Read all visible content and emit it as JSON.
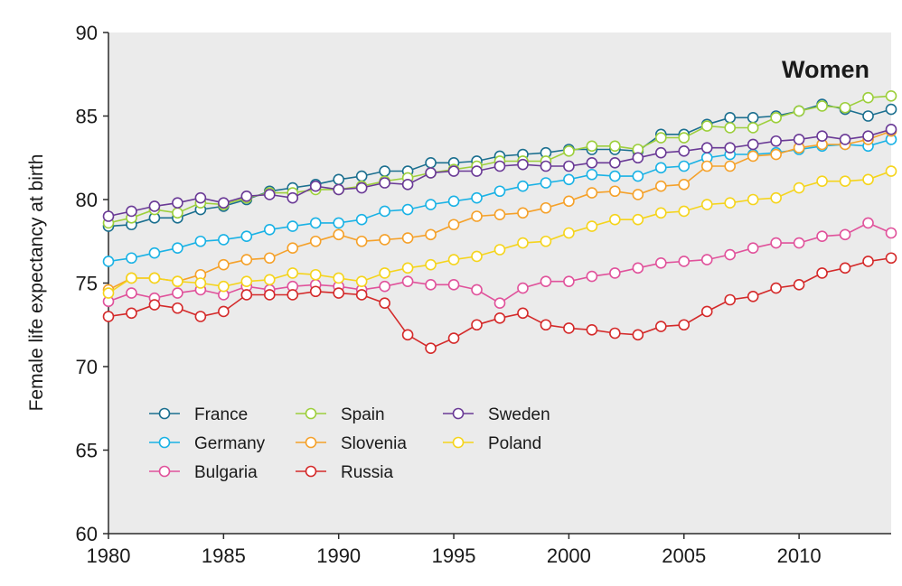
{
  "chart_data": {
    "type": "line",
    "title": "Women",
    "xlabel": "",
    "ylabel": "Female life expectancy at birth",
    "xlim": [
      1980,
      2014
    ],
    "ylim": [
      60,
      90
    ],
    "xticks": [
      1980,
      1985,
      1990,
      1995,
      2000,
      2005,
      2010
    ],
    "yticks": [
      60,
      65,
      70,
      75,
      80,
      85,
      90
    ],
    "grid": false,
    "legend_position": "bottom-left",
    "x": [
      1980,
      1981,
      1982,
      1983,
      1984,
      1985,
      1986,
      1987,
      1988,
      1989,
      1990,
      1991,
      1992,
      1993,
      1994,
      1995,
      1996,
      1997,
      1998,
      1999,
      2000,
      2001,
      2002,
      2003,
      2004,
      2005,
      2006,
      2007,
      2008,
      2009,
      2010,
      2011,
      2012,
      2013,
      2014
    ],
    "series": [
      {
        "name": "France",
        "color": "#1b6f8f",
        "values": [
          78.4,
          78.5,
          78.9,
          78.9,
          79.4,
          79.6,
          80.0,
          80.5,
          80.7,
          80.9,
          81.2,
          81.4,
          81.7,
          81.7,
          82.2,
          82.2,
          82.3,
          82.6,
          82.7,
          82.8,
          83.0,
          83.0,
          83.0,
          82.9,
          83.9,
          83.9,
          84.5,
          84.9,
          84.9,
          85.0,
          85.3,
          85.7,
          85.4,
          85.0,
          85.4
        ]
      },
      {
        "name": "Germany",
        "color": "#1ab2e5",
        "values": [
          76.3,
          76.5,
          76.8,
          77.1,
          77.5,
          77.6,
          77.8,
          78.2,
          78.4,
          78.6,
          78.6,
          78.8,
          79.3,
          79.4,
          79.7,
          79.9,
          80.1,
          80.5,
          80.8,
          81.0,
          81.2,
          81.5,
          81.4,
          81.4,
          81.9,
          82.0,
          82.5,
          82.7,
          82.7,
          82.8,
          83.0,
          83.2,
          83.3,
          83.2,
          83.6
        ]
      },
      {
        "name": "Bulgaria",
        "color": "#e0529b",
        "values": [
          73.9,
          74.4,
          74.1,
          74.4,
          74.6,
          74.3,
          74.8,
          74.6,
          74.8,
          74.9,
          74.8,
          74.6,
          74.8,
          75.1,
          74.9,
          74.9,
          74.6,
          73.8,
          74.7,
          75.1,
          75.1,
          75.4,
          75.6,
          75.9,
          76.2,
          76.3,
          76.4,
          76.7,
          77.1,
          77.4,
          77.4,
          77.8,
          77.9,
          78.6,
          78.0
        ]
      },
      {
        "name": "Spain",
        "color": "#9dcf3c",
        "values": [
          78.6,
          78.9,
          79.4,
          79.2,
          79.8,
          79.7,
          80.1,
          80.4,
          80.4,
          80.6,
          80.6,
          80.8,
          81.1,
          81.3,
          81.6,
          81.8,
          82.0,
          82.3,
          82.3,
          82.3,
          82.9,
          83.2,
          83.2,
          83.0,
          83.7,
          83.7,
          84.4,
          84.3,
          84.3,
          84.9,
          85.3,
          85.6,
          85.5,
          86.1,
          86.2
        ]
      },
      {
        "name": "Slovenia",
        "color": "#f5a12a",
        "values": [
          74.6,
          75.3,
          75.3,
          75.1,
          75.5,
          76.1,
          76.4,
          76.5,
          77.1,
          77.5,
          77.9,
          77.5,
          77.6,
          77.7,
          77.9,
          78.5,
          79.0,
          79.1,
          79.2,
          79.5,
          79.9,
          80.4,
          80.5,
          80.3,
          80.8,
          80.9,
          82.0,
          82.0,
          82.6,
          82.7,
          83.1,
          83.3,
          83.3,
          83.6,
          84.1
        ]
      },
      {
        "name": "Russia",
        "color": "#d42a2a",
        "values": [
          73.0,
          73.2,
          73.7,
          73.5,
          73.0,
          73.3,
          74.3,
          74.3,
          74.3,
          74.5,
          74.4,
          74.3,
          73.8,
          71.9,
          71.1,
          71.7,
          72.5,
          72.9,
          73.2,
          72.5,
          72.3,
          72.2,
          72.0,
          71.9,
          72.4,
          72.5,
          73.3,
          74.0,
          74.2,
          74.7,
          74.9,
          75.6,
          75.9,
          76.3,
          76.5
        ]
      },
      {
        "name": "Sweden",
        "color": "#6a3a96",
        "values": [
          79.0,
          79.3,
          79.6,
          79.8,
          80.1,
          79.8,
          80.2,
          80.3,
          80.1,
          80.8,
          80.6,
          80.7,
          81.0,
          80.9,
          81.6,
          81.7,
          81.7,
          82.0,
          82.1,
          82.0,
          82.0,
          82.2,
          82.2,
          82.5,
          82.8,
          82.9,
          83.1,
          83.1,
          83.3,
          83.5,
          83.6,
          83.8,
          83.6,
          83.8,
          84.2
        ]
      },
      {
        "name": "Poland",
        "color": "#f5d41c",
        "values": [
          74.4,
          75.3,
          75.3,
          75.1,
          75.0,
          74.8,
          75.1,
          75.2,
          75.6,
          75.5,
          75.3,
          75.1,
          75.6,
          75.9,
          76.1,
          76.4,
          76.6,
          77.0,
          77.4,
          77.5,
          78.0,
          78.4,
          78.8,
          78.8,
          79.2,
          79.3,
          79.7,
          79.8,
          80.0,
          80.1,
          80.7,
          81.1,
          81.1,
          81.2,
          81.7
        ]
      }
    ]
  }
}
